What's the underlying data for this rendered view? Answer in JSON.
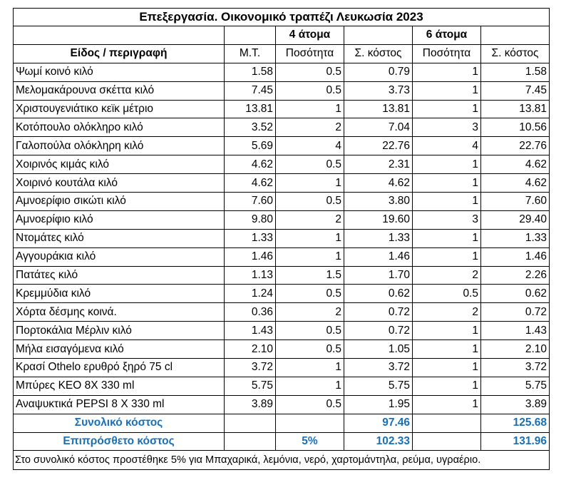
{
  "title": "Επεξεργασία. Οικονομικό τραπέζι Λευκωσία 2023",
  "groups": {
    "four": "4 άτομα",
    "six": "6 άτομα"
  },
  "headers": {
    "item": "Είδος / περιγραφή",
    "mt": "Μ.Τ.",
    "qty4": "Ποσότητα",
    "cost4": "Σ. κόστος",
    "qty6": "Ποσότητα",
    "cost6": "Σ. κόστος"
  },
  "rows": [
    {
      "item": "Ψωμί κοινό κιλό",
      "mt": "1.58",
      "qty4": "0.5",
      "cost4": "0.79",
      "qty6": "1",
      "cost6": "1.58"
    },
    {
      "item": "Μελομακάρουνα σκέττα κιλό",
      "mt": "7.45",
      "qty4": "0.5",
      "cost4": "3.73",
      "qty6": "1",
      "cost6": "7.45"
    },
    {
      "item": "Χριστουγενιάτικο κεϊκ μέτριο",
      "mt": "13.81",
      "qty4": "1",
      "cost4": "13.81",
      "qty6": "1",
      "cost6": "13.81"
    },
    {
      "item": "Κοτόπουλο ολόκληρο κιλό",
      "mt": "3.52",
      "qty4": "2",
      "cost4": "7.04",
      "qty6": "3",
      "cost6": "10.56"
    },
    {
      "item": "Γαλοπούλα ολόκληρη κιλό",
      "mt": "5.69",
      "qty4": "4",
      "cost4": "22.76",
      "qty6": "4",
      "cost6": "22.76"
    },
    {
      "item": "Χοιρινός κιμάς κιλό",
      "mt": "4.62",
      "qty4": "0.5",
      "cost4": "2.31",
      "qty6": "1",
      "cost6": "4.62"
    },
    {
      "item": "Χοιρινό κουτάλα κιλό",
      "mt": "4.62",
      "qty4": "1",
      "cost4": "4.62",
      "qty6": "1",
      "cost6": "4.62"
    },
    {
      "item": "Αμνοερίφιο σικώτι κιλό",
      "mt": "7.60",
      "qty4": "0.5",
      "cost4": "3.80",
      "qty6": "1",
      "cost6": "7.60"
    },
    {
      "item": "Αμνοερίφιο κιλό",
      "mt": "9.80",
      "qty4": "2",
      "cost4": "19.60",
      "qty6": "3",
      "cost6": "29.40"
    },
    {
      "item": "Ντομάτες κιλό",
      "mt": "1.33",
      "qty4": "1",
      "cost4": "1.33",
      "qty6": "1",
      "cost6": "1.33"
    },
    {
      "item": "Αγγουράκια κιλό",
      "mt": "1.46",
      "qty4": "1",
      "cost4": "1.46",
      "qty6": "1",
      "cost6": "1.46"
    },
    {
      "item": "Πατάτες κιλό",
      "mt": "1.13",
      "qty4": "1.5",
      "cost4": "1.70",
      "qty6": "2",
      "cost6": "2.26"
    },
    {
      "item": "Κρεμμύδια κιλό",
      "mt": "1.24",
      "qty4": "0.5",
      "cost4": "0.62",
      "qty6": "0.5",
      "cost6": "0.62"
    },
    {
      "item": "Χόρτα δέσμης κοινά.",
      "mt": "0.36",
      "qty4": "2",
      "cost4": "0.72",
      "qty6": "2",
      "cost6": "0.72"
    },
    {
      "item": "Πορτοκάλια Μέρλιν κιλό",
      "mt": "1.43",
      "qty4": "0.5",
      "cost4": "0.72",
      "qty6": "1",
      "cost6": "1.43"
    },
    {
      "item": "Μήλα εισαγόμενα κιλό",
      "mt": "2.10",
      "qty4": "0.5",
      "cost4": "1.05",
      "qty6": "1",
      "cost6": "2.10"
    },
    {
      "item": "Κρασί Othelo ερυθρό ξηρό 75 cl",
      "mt": "3.72",
      "qty4": "1",
      "cost4": "3.72",
      "qty6": "1",
      "cost6": "3.72"
    },
    {
      "item": "Μπύρες ΚΕΟ  8Χ 330 ml",
      "mt": "5.75",
      "qty4": "1",
      "cost4": "5.75",
      "qty6": "1",
      "cost6": "5.75"
    },
    {
      "item": "Αναψυκτικά PEPSI 8 X 330 ml",
      "mt": "3.89",
      "qty4": "0.5",
      "cost4": "1.95",
      "qty6": "1",
      "cost6": "3.89"
    }
  ],
  "total": {
    "label": "Συνολικό κόστος",
    "cost4": "97.46",
    "cost6": "125.68"
  },
  "extra": {
    "label": "Επιπρόσθετο κόστος",
    "pct": "5%",
    "cost4": "102.33",
    "cost6": "131.96"
  },
  "note": "Στο συνολικό κόστος προστέθηκε 5% για Μπαχαρικά, λεμόνια, νερό, χαρτομάντηλα, ρεύμα, υγραέριο.",
  "colors": {
    "total_text": "#1a6fb5",
    "border": "#000000"
  }
}
